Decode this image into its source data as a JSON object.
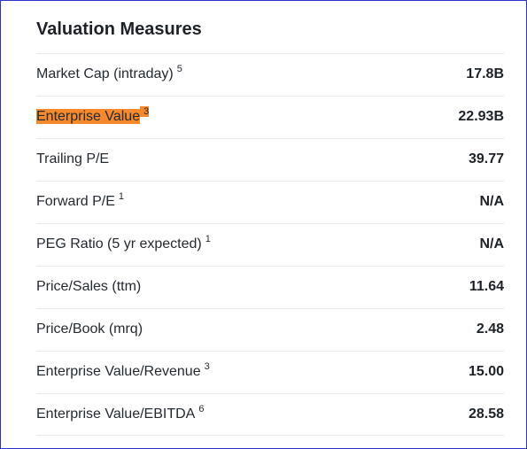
{
  "section": {
    "title": "Valuation Measures",
    "rows": [
      {
        "label": "Market Cap (intraday)",
        "note": "5",
        "value": "17.8B"
      },
      {
        "label": "Enterprise Value",
        "note": "3",
        "value": "22.93B"
      },
      {
        "label": "Trailing P/E",
        "note": "",
        "value": "39.77"
      },
      {
        "label": "Forward P/E",
        "note": "1",
        "value": "N/A"
      },
      {
        "label": "PEG Ratio (5 yr expected)",
        "note": "1",
        "value": "N/A"
      },
      {
        "label": "Price/Sales (ttm)",
        "note": "",
        "value": "11.64"
      },
      {
        "label": "Price/Book (mrq)",
        "note": "",
        "value": "2.48"
      },
      {
        "label": "Enterprise Value/Revenue",
        "note": "3",
        "value": "15.00"
      },
      {
        "label": "Enterprise Value/EBITDA",
        "note": "6",
        "value": "28.58"
      }
    ]
  },
  "colors": {
    "highlight": "#f5892b",
    "frame_border": "#2b33c9",
    "divider": "#e6e9ee"
  }
}
